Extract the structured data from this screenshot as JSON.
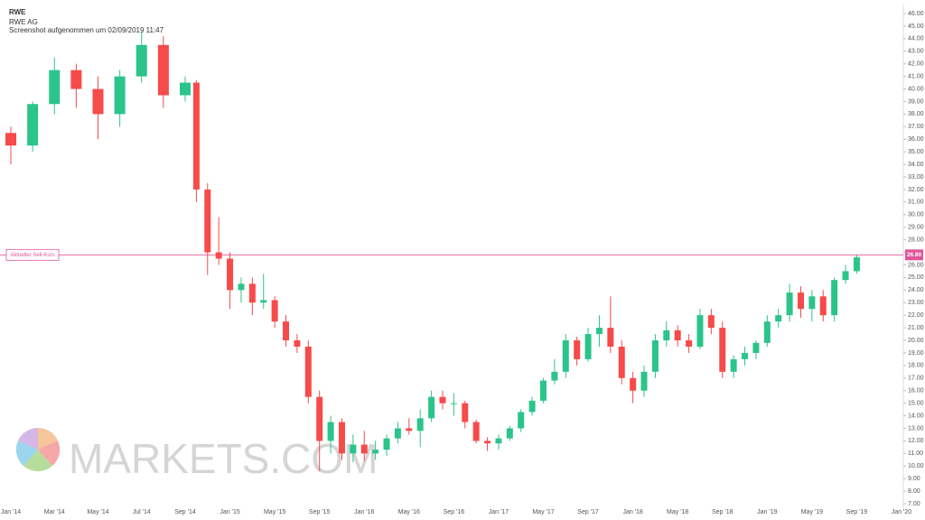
{
  "chart_data": {
    "type": "candlestick",
    "title": "RWE",
    "subtitle": "RWE AG",
    "note": "Screenshot aufgenommen um 02/09/2019 11:47",
    "watermark": "MARKETS.COM",
    "up_color": "#2bc48a",
    "down_color": "#f74a4a",
    "categories": [
      "Jan '14",
      null,
      "Mar '14",
      null,
      "May '14",
      null,
      "Jul '14",
      null,
      "Sep '14",
      null,
      null,
      null,
      "Jan '15",
      null,
      null,
      null,
      "May '15",
      null,
      null,
      null,
      "Sep '15",
      null,
      null,
      null,
      "Jan '16",
      null,
      null,
      null,
      "May '16",
      null,
      null,
      null,
      "Sep '16",
      null,
      null,
      null,
      "Jan '17",
      null,
      null,
      null,
      "May '17",
      null,
      null,
      null,
      "Sep '17",
      null,
      null,
      null,
      "Jan '18",
      null,
      null,
      null,
      "May '18",
      null,
      null,
      null,
      "Sep '18",
      null,
      null,
      null,
      "Jan '19",
      null,
      null,
      null,
      "May '19",
      null,
      null,
      null,
      "Sep '19",
      null,
      null,
      null,
      "Jan '20"
    ],
    "open": [
      36.5,
      35.5,
      38.8,
      41.5,
      40,
      38,
      41,
      43.5,
      39.5,
      40.5,
      32,
      27,
      26.5,
      24,
      24.5,
      23,
      23.2,
      21.5,
      20,
      19.5,
      15.5,
      12,
      13.5,
      11,
      11.7,
      11,
      11.3,
      12.2,
      13,
      12.8,
      13.8,
      15.5,
      15,
      15,
      13.5,
      12,
      11.8,
      12.2,
      13,
      14.3,
      15.2,
      16.8,
      17.5,
      20,
      18.5,
      20.5,
      21,
      19.5,
      17,
      16,
      17.5,
      20,
      20.8,
      20,
      19.5,
      22,
      21,
      17.5,
      18.5,
      19,
      19.8,
      21.5,
      22,
      23.8,
      22.5,
      23.5,
      22,
      24.8,
      25.5,
      null,
      null,
      null,
      null
    ],
    "high": [
      37,
      39,
      42.5,
      42,
      41,
      41.5,
      44.5,
      44.2,
      41,
      40.7,
      32.5,
      29.8,
      27,
      25,
      25,
      25.3,
      23.5,
      22,
      20.5,
      20,
      16,
      14,
      13.8,
      12.5,
      12.8,
      12,
      12.5,
      13.5,
      13.8,
      14.5,
      16,
      16,
      15.8,
      15.2,
      13.7,
      12.3,
      12.5,
      13.2,
      14.5,
      15.5,
      17,
      18.5,
      20.5,
      20.3,
      21,
      22,
      23.5,
      20,
      17.5,
      18,
      20.5,
      21.5,
      21.2,
      20.5,
      22.5,
      22.5,
      21.5,
      18.8,
      19.5,
      20,
      22,
      22.5,
      24.5,
      24.3,
      24,
      24,
      25,
      26,
      26.8,
      null,
      null,
      null,
      null
    ],
    "low": [
      34,
      35,
      38,
      38.5,
      36,
      37,
      40.5,
      38.5,
      39,
      31,
      25.2,
      26,
      22.5,
      23,
      22,
      22.5,
      21,
      19.5,
      19,
      15,
      9.6,
      11,
      10.5,
      10.3,
      10.4,
      10.5,
      10.8,
      11.8,
      12.5,
      11.5,
      13.5,
      14.5,
      14,
      13,
      11.8,
      11.2,
      11.3,
      12,
      12.7,
      14,
      15,
      16.5,
      17,
      18,
      18.3,
      19.5,
      19,
      16.5,
      15,
      15.5,
      17,
      19.5,
      19.5,
      19,
      19.3,
      20.5,
      17,
      17,
      18,
      18.5,
      19.5,
      21,
      21.5,
      21.8,
      21.5,
      21.5,
      21.5,
      24.5,
      25.3,
      null,
      null,
      null,
      null
    ],
    "close": [
      35.5,
      38.8,
      41.5,
      40,
      38,
      41,
      43.5,
      39.5,
      40.5,
      32,
      27,
      26.5,
      24,
      24.5,
      23,
      23.2,
      21.5,
      20,
      19.5,
      15.5,
      12,
      13.5,
      11,
      11.7,
      11,
      11.3,
      12.2,
      13,
      12.8,
      13.8,
      15.5,
      15,
      15,
      13.5,
      12,
      11.8,
      12.2,
      13,
      14.3,
      15.2,
      16.8,
      17.5,
      20,
      18.5,
      20.5,
      21,
      19.5,
      17,
      16,
      17.5,
      20,
      20.8,
      20,
      19.5,
      22,
      21,
      17.5,
      18.5,
      19,
      19.8,
      21.5,
      22,
      23.8,
      22.5,
      23.5,
      22,
      24.8,
      25.5,
      26.6,
      null,
      null,
      null,
      null
    ],
    "ylim": [
      7,
      46
    ],
    "yticks": [
      {
        "value": 7,
        "label": "7.00"
      },
      {
        "value": 8,
        "label": "8.00"
      },
      {
        "value": 9,
        "label": "9.00"
      },
      {
        "value": 10,
        "label": "10.00"
      },
      {
        "value": 11,
        "label": "11.00"
      },
      {
        "value": 12,
        "label": "12.00"
      },
      {
        "value": 13,
        "label": "13.00"
      },
      {
        "value": 14,
        "label": "14.00"
      },
      {
        "value": 15,
        "label": "15.00"
      },
      {
        "value": 16,
        "label": "16.00"
      },
      {
        "value": 17,
        "label": "17.00"
      },
      {
        "value": 18,
        "label": "18.00"
      },
      {
        "value": 19,
        "label": "19.00"
      },
      {
        "value": 20,
        "label": "20.00"
      },
      {
        "value": 21,
        "label": "21.00"
      },
      {
        "value": 22,
        "label": "22.00"
      },
      {
        "value": 23,
        "label": "23.00"
      },
      {
        "value": 24,
        "label": "24.00"
      },
      {
        "value": 25,
        "label": "25.00"
      },
      {
        "value": 26,
        "label": "26.00"
      },
      {
        "value": 27,
        "label": "27.00"
      },
      {
        "value": 28,
        "label": "28.00"
      },
      {
        "value": 29,
        "label": "29.00"
      },
      {
        "value": 30,
        "label": "30.00"
      },
      {
        "value": 31,
        "label": "31.00"
      },
      {
        "value": 32,
        "label": "32.00"
      },
      {
        "value": 33,
        "label": "33.00"
      },
      {
        "value": 34,
        "label": "34.00"
      },
      {
        "value": 35,
        "label": "35.00"
      },
      {
        "value": 36,
        "label": "36.00"
      },
      {
        "value": 37,
        "label": "37.00"
      },
      {
        "value": 38,
        "label": "38.00"
      },
      {
        "value": 39,
        "label": "39.00"
      },
      {
        "value": 40,
        "label": "40.00"
      },
      {
        "value": 41,
        "label": "41.00"
      },
      {
        "value": 42,
        "label": "42.00"
      },
      {
        "value": 43,
        "label": "43.00"
      },
      {
        "value": 44,
        "label": "44.00"
      },
      {
        "value": 45,
        "label": "45.00"
      },
      {
        "value": 46,
        "label": "46.00"
      }
    ],
    "current_price": {
      "label": "Aktueller Sell-Kurs",
      "value": 26.8,
      "value_label": "26.80",
      "color": "#e0559a"
    }
  }
}
